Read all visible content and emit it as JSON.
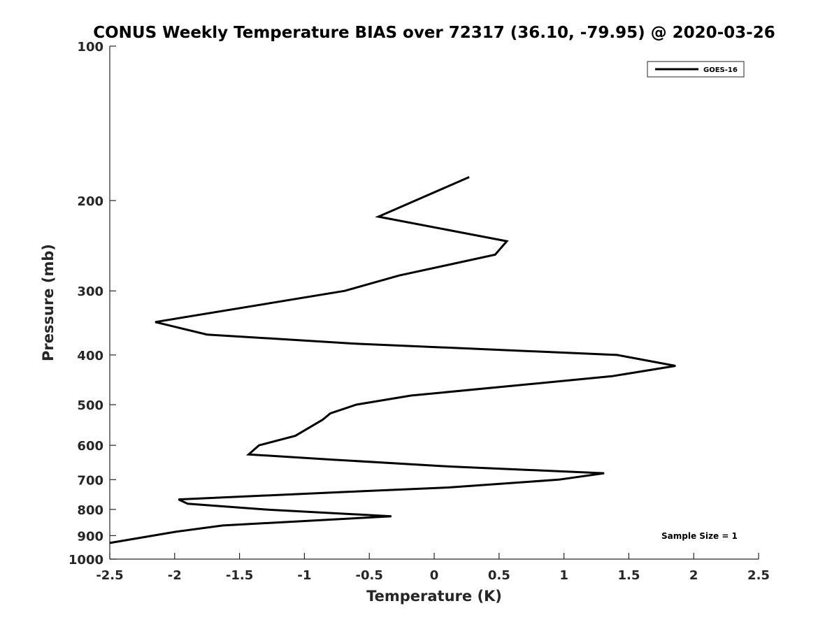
{
  "chart_data": {
    "type": "line",
    "title": "CONUS Weekly Temperature BIAS over 72317 (36.10, -79.95) @ 2020-03-26",
    "xlabel": "Temperature (K)",
    "ylabel": "Pressure (mb)",
    "xlim": [
      -2.5,
      2.5
    ],
    "ylim": [
      100,
      1000
    ],
    "y_scale": "log",
    "y_reversed": true,
    "grid": false,
    "legend_position": "top-right",
    "x_ticks": [
      "-2.5",
      "-2",
      "-1.5",
      "-1",
      "-0.5",
      "0",
      "0.5",
      "1",
      "1.5",
      "2",
      "2.5"
    ],
    "y_ticks": [
      "100",
      "200",
      "300",
      "400",
      "500",
      "600",
      "700",
      "800",
      "900",
      "1000"
    ],
    "series": [
      {
        "name": "GOES-16",
        "color": "#000000",
        "points": [
          {
            "x": 0.27,
            "y": 180
          },
          {
            "x": -0.43,
            "y": 215
          },
          {
            "x": 0.56,
            "y": 240
          },
          {
            "x": 0.47,
            "y": 255
          },
          {
            "x": -0.27,
            "y": 280
          },
          {
            "x": -0.69,
            "y": 300
          },
          {
            "x": -2.15,
            "y": 345
          },
          {
            "x": -1.75,
            "y": 365
          },
          {
            "x": -0.62,
            "y": 380
          },
          {
            "x": 1.41,
            "y": 400
          },
          {
            "x": 1.86,
            "y": 420
          },
          {
            "x": 1.37,
            "y": 440
          },
          {
            "x": -0.18,
            "y": 480
          },
          {
            "x": -0.6,
            "y": 500
          },
          {
            "x": -0.8,
            "y": 520
          },
          {
            "x": -0.86,
            "y": 535
          },
          {
            "x": -1.07,
            "y": 575
          },
          {
            "x": -1.35,
            "y": 600
          },
          {
            "x": -1.43,
            "y": 625
          },
          {
            "x": -0.78,
            "y": 640
          },
          {
            "x": 0.12,
            "y": 660
          },
          {
            "x": 1.31,
            "y": 680
          },
          {
            "x": 0.96,
            "y": 700
          },
          {
            "x": 0.11,
            "y": 725
          },
          {
            "x": -0.7,
            "y": 740
          },
          {
            "x": -1.97,
            "y": 765
          },
          {
            "x": -1.9,
            "y": 780
          },
          {
            "x": -1.31,
            "y": 800
          },
          {
            "x": -0.33,
            "y": 825
          },
          {
            "x": -1.63,
            "y": 860
          },
          {
            "x": -2.0,
            "y": 885
          },
          {
            "x": -2.5,
            "y": 930
          }
        ]
      }
    ],
    "annotation": "Sample Size = 1"
  }
}
